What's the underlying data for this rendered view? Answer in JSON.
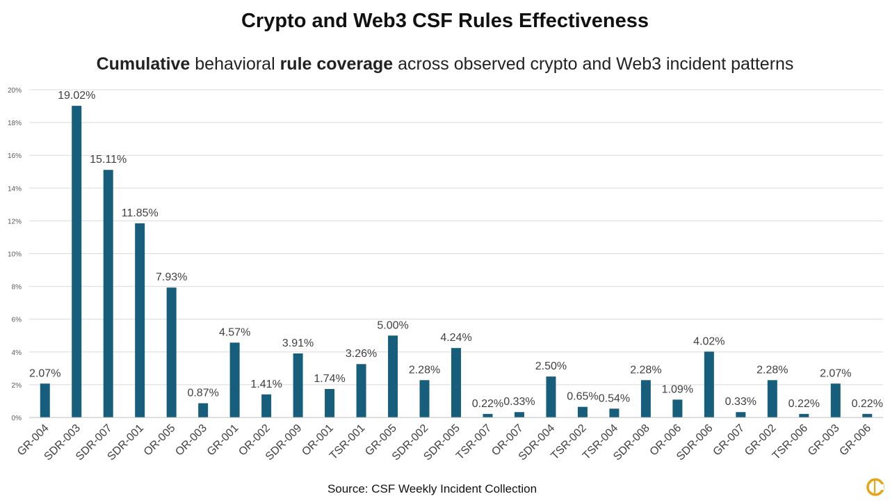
{
  "title": "Crypto and Web3 CSF Rules Effectiveness",
  "subtitle": {
    "part1": "Cumulative",
    "part2": " behavioral ",
    "part3": "rule coverage",
    "part4": " across observed crypto and Web3 incident patterns"
  },
  "source": "Source: CSF Weekly Incident Collection",
  "colors": {
    "bar": "#175E7C",
    "grid": "#D9D9D9",
    "logo": "#E6A417"
  },
  "chart_data": {
    "type": "bar",
    "categories": [
      "GR-004",
      "SDR-003",
      "SDR-007",
      "SDR-001",
      "OR-005",
      "OR-003",
      "GR-001",
      "OR-002",
      "SDR-009",
      "OR-001",
      "TSR-001",
      "GR-005",
      "SDR-002",
      "SDR-005",
      "TSR-007",
      "OR-007",
      "SDR-004",
      "TSR-002",
      "TSR-004",
      "SDR-008",
      "OR-006",
      "SDR-006",
      "GR-007",
      "GR-002",
      "TSR-006",
      "GR-003",
      "GR-006"
    ],
    "values": [
      2.07,
      19.02,
      15.11,
      11.85,
      7.93,
      0.87,
      4.57,
      1.41,
      3.91,
      1.74,
      3.26,
      5.0,
      2.28,
      4.24,
      0.22,
      0.33,
      2.5,
      0.65,
      0.54,
      2.28,
      1.09,
      4.02,
      0.33,
      2.28,
      0.22,
      2.07,
      0.22
    ],
    "data_labels": [
      "2.07%",
      "19.02%",
      "15.11%",
      "11.85%",
      "7.93%",
      "0.87%",
      "4.57%",
      "1.41%",
      "3.91%",
      "1.74%",
      "3.26%",
      "5.00%",
      "2.28%",
      "4.24%",
      "0.22%",
      "0.33%",
      "2.50%",
      "0.65%",
      "0.54%",
      "2.28%",
      "1.09%",
      "4.02%",
      "0.33%",
      "2.28%",
      "0.22%",
      "2.07%",
      "0.22%"
    ],
    "yticks": [
      "0%",
      "2%",
      "4%",
      "6%",
      "8%",
      "10%",
      "12%",
      "14%",
      "16%",
      "18%",
      "20%"
    ],
    "ylim": [
      0,
      20
    ],
    "grid": true,
    "legend": "none"
  }
}
